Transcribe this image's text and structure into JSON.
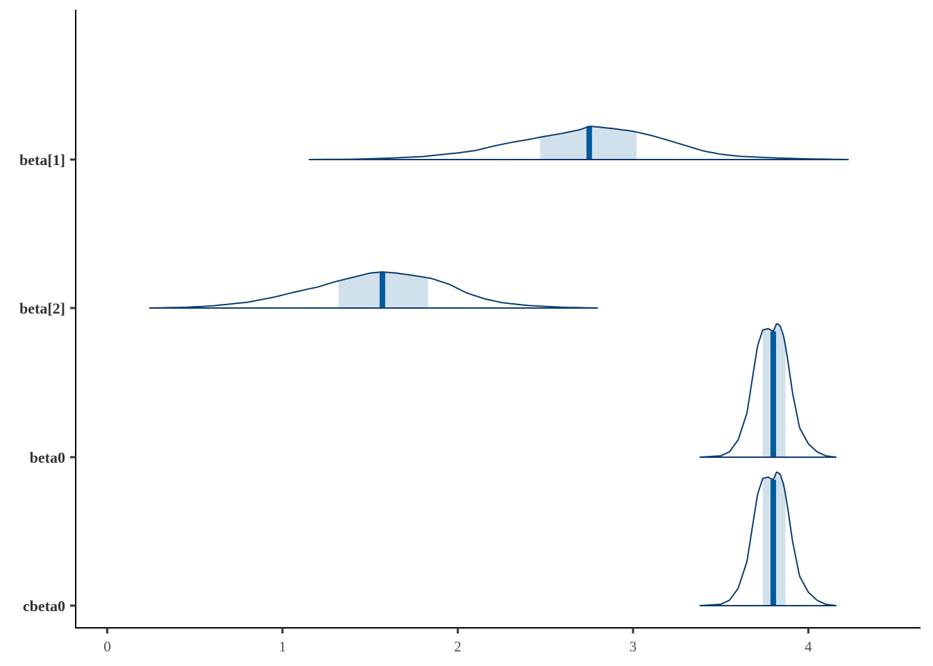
{
  "colors": {
    "outline": "#0d3b6e",
    "interval_fill": "#d1e1ec",
    "median": "#035a9c"
  },
  "chart_data": {
    "type": "area",
    "title": "",
    "xlabel": "",
    "ylabel": "",
    "xlim": [
      -0.18,
      4.64
    ],
    "x_ticks": [
      "0",
      "1",
      "2",
      "3",
      "4"
    ],
    "x_tick_values": [
      0,
      1,
      2,
      3,
      4
    ],
    "grid": false,
    "legend": "none",
    "series": [
      {
        "name": "beta[1]",
        "median": 2.75,
        "inner_interval": [
          2.47,
          3.02
        ],
        "outer_interval": [
          1.15,
          4.23
        ],
        "density": {
          "x": [
            1.15,
            1.4,
            1.6,
            1.8,
            2.0,
            2.1,
            2.2,
            2.3,
            2.4,
            2.5,
            2.6,
            2.7,
            2.75,
            2.8,
            2.9,
            3.0,
            3.1,
            3.2,
            3.3,
            3.4,
            3.5,
            3.6,
            3.8,
            4.0,
            4.23
          ],
          "y": [
            0.0,
            0.01,
            0.04,
            0.09,
            0.2,
            0.27,
            0.4,
            0.51,
            0.6,
            0.7,
            0.79,
            0.9,
            1.0,
            0.98,
            0.92,
            0.85,
            0.73,
            0.58,
            0.42,
            0.26,
            0.16,
            0.1,
            0.05,
            0.02,
            0.0
          ]
        }
      },
      {
        "name": "beta[2]",
        "median": 1.57,
        "inner_interval": [
          1.32,
          1.83
        ],
        "outer_interval": [
          0.24,
          2.8
        ],
        "density": {
          "x": [
            0.24,
            0.45,
            0.6,
            0.8,
            0.95,
            1.05,
            1.15,
            1.2,
            1.3,
            1.4,
            1.5,
            1.57,
            1.65,
            1.75,
            1.85,
            1.95,
            2.05,
            2.15,
            2.25,
            2.4,
            2.6,
            2.8
          ],
          "y": [
            0.0,
            0.02,
            0.06,
            0.16,
            0.3,
            0.42,
            0.53,
            0.58,
            0.73,
            0.85,
            0.97,
            1.0,
            0.97,
            0.9,
            0.82,
            0.66,
            0.42,
            0.26,
            0.15,
            0.07,
            0.02,
            0.0
          ]
        }
      },
      {
        "name": "beta0",
        "median": 3.8,
        "inner_interval": [
          3.74,
          3.87
        ],
        "outer_interval": [
          3.38,
          4.16
        ],
        "density": {
          "x": [
            3.38,
            3.5,
            3.55,
            3.6,
            3.65,
            3.68,
            3.71,
            3.74,
            3.77,
            3.8,
            3.82,
            3.84,
            3.86,
            3.88,
            3.91,
            3.95,
            4.0,
            4.05,
            4.1,
            4.16
          ],
          "y": [
            0.0,
            0.01,
            0.04,
            0.13,
            0.33,
            0.58,
            0.83,
            0.95,
            0.96,
            0.94,
            1.0,
            0.98,
            0.9,
            0.75,
            0.48,
            0.22,
            0.1,
            0.04,
            0.01,
            0.0
          ]
        }
      },
      {
        "name": "cbeta0",
        "median": 3.8,
        "inner_interval": [
          3.74,
          3.87
        ],
        "outer_interval": [
          3.38,
          4.16
        ],
        "density": {
          "x": [
            3.38,
            3.5,
            3.55,
            3.6,
            3.65,
            3.68,
            3.71,
            3.74,
            3.77,
            3.8,
            3.82,
            3.84,
            3.86,
            3.88,
            3.91,
            3.95,
            4.0,
            4.05,
            4.1,
            4.16
          ],
          "y": [
            0.0,
            0.01,
            0.04,
            0.13,
            0.33,
            0.58,
            0.83,
            0.95,
            0.96,
            0.94,
            1.0,
            0.98,
            0.9,
            0.75,
            0.48,
            0.22,
            0.1,
            0.04,
            0.01,
            0.0
          ]
        }
      }
    ]
  }
}
